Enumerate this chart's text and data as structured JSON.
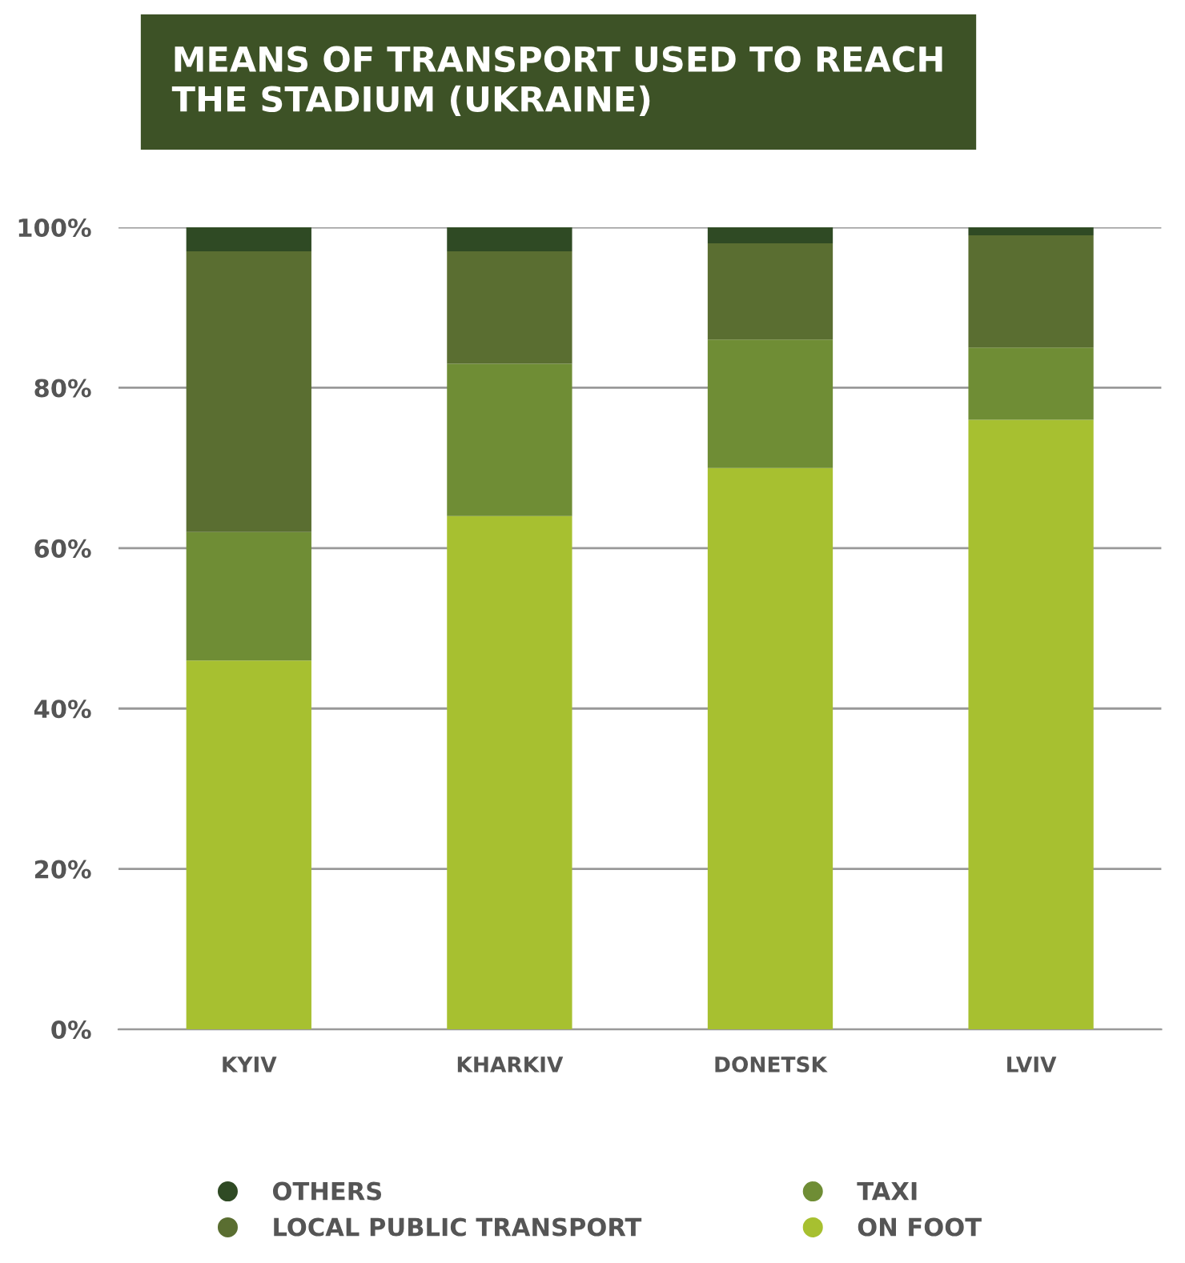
{
  "chart_data": {
    "type": "bar",
    "title": "MEANS OF TRANSPORT USED TO REACH\nTHE STADIUM (UKRAINE)",
    "stacked": true,
    "categories": [
      "KYIV",
      "KHARKIV",
      "DONETSK",
      "LVIV"
    ],
    "series": [
      {
        "name": "ON FOOT",
        "color": "#a7c030",
        "values": [
          46,
          64,
          70,
          76
        ]
      },
      {
        "name": "TAXI",
        "color": "#6f8d35",
        "values": [
          16,
          19,
          16,
          9
        ]
      },
      {
        "name": "LOCAL PUBLIC TRANSPORT",
        "color": "#5a6e31",
        "values": [
          35,
          14,
          12,
          14
        ]
      },
      {
        "name": "OTHERS",
        "color": "#2f4a24",
        "values": [
          3,
          3,
          2,
          1
        ]
      }
    ],
    "ylim": [
      0,
      100
    ],
    "yticks": [
      {
        "value": 0,
        "label": "0%"
      },
      {
        "value": 20,
        "label": "20%"
      },
      {
        "value": 40,
        "label": "40%"
      },
      {
        "value": 60,
        "label": "60%"
      },
      {
        "value": 80,
        "label": "80%"
      },
      {
        "value": 100,
        "label": "100%"
      }
    ],
    "grid": "y",
    "legend": "bottom",
    "marker": "circle"
  }
}
